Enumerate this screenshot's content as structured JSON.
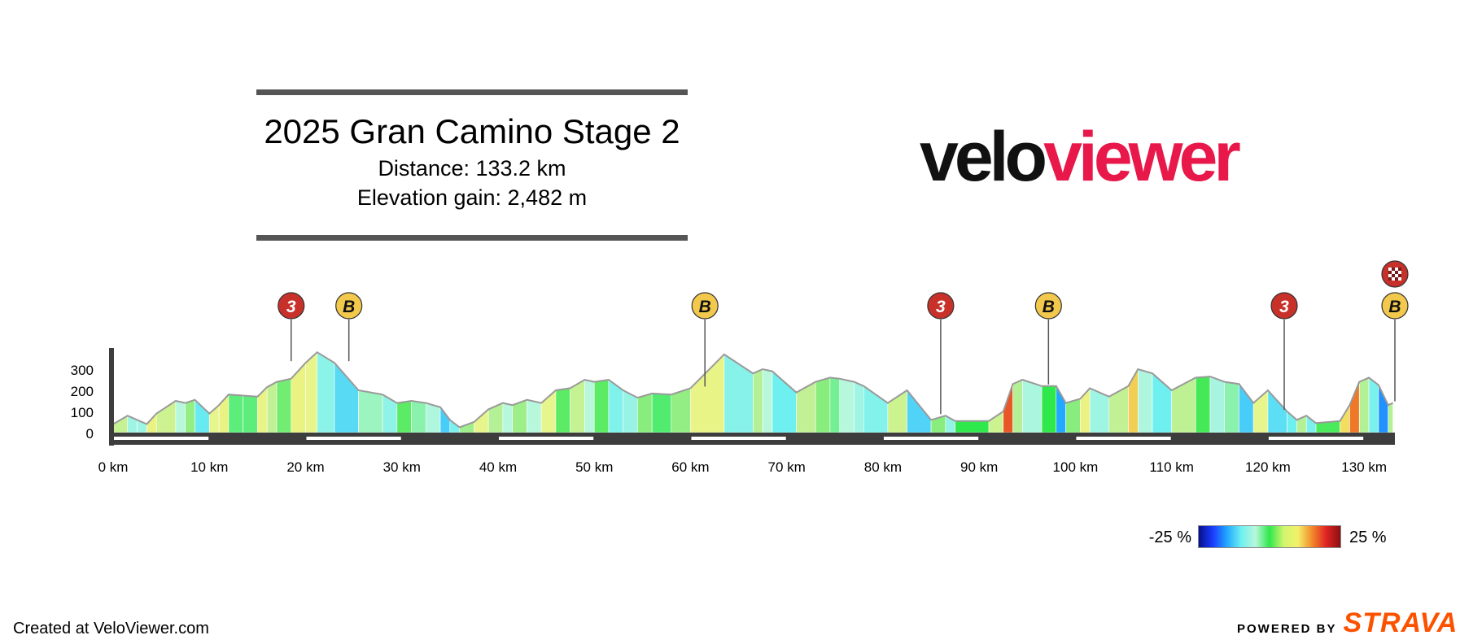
{
  "title": "2025 Gran Camino Stage 2",
  "distance_label": "Distance: 133.2 km",
  "gain_label": "Elevation gain: 2,482 m",
  "logo": {
    "part1": "velo",
    "part2": "viewer"
  },
  "legend": {
    "min_label": "-25 %",
    "max_label": "25 %",
    "colors": [
      "#06108c",
      "#1b3cff",
      "#21a8ff",
      "#6ff0f0",
      "#b7f7dc",
      "#2fe84b",
      "#d2f56e",
      "#f3f06a",
      "#f28a2a",
      "#e02424",
      "#8a0f0f"
    ]
  },
  "credit": "Created at VeloViewer.com",
  "powered": {
    "prefix": "POWERED BY",
    "brand": "STRAVA"
  },
  "chart_data": {
    "type": "area",
    "xlabel": "",
    "ylabel": "",
    "xlim": [
      0,
      133.2
    ],
    "ylim": [
      0,
      400
    ],
    "x_ticks": [
      0,
      10,
      20,
      30,
      40,
      50,
      60,
      70,
      80,
      90,
      100,
      110,
      120,
      130
    ],
    "x_tick_labels": [
      "0 km",
      "10 km",
      "20 km",
      "30 km",
      "40 km",
      "50 km",
      "60 km",
      "70 km",
      "80 km",
      "90 km",
      "100 km",
      "110 km",
      "120 km",
      "130 km"
    ],
    "y_ticks": [
      0,
      100,
      200,
      300
    ],
    "y_tick_labels": [
      "0",
      "100",
      "200",
      "300"
    ],
    "grid": false,
    "color_scale": {
      "min_gradient_pct": -25,
      "max_gradient_pct": 25
    },
    "series": [
      {
        "points": [
          [
            0,
            40
          ],
          [
            1.5,
            80
          ],
          [
            2.5,
            60
          ],
          [
            3.5,
            40
          ],
          [
            4.5,
            90
          ],
          [
            6.5,
            150
          ],
          [
            7.5,
            140
          ],
          [
            8.5,
            155
          ],
          [
            10,
            90
          ],
          [
            11,
            130
          ],
          [
            12,
            180
          ],
          [
            13.5,
            175
          ],
          [
            15,
            170
          ],
          [
            16,
            215
          ],
          [
            17,
            240
          ],
          [
            18.5,
            255
          ],
          [
            20,
            330
          ],
          [
            21.2,
            380
          ],
          [
            23,
            330
          ],
          [
            25.5,
            200
          ],
          [
            28,
            180
          ],
          [
            29.5,
            140
          ],
          [
            31,
            150
          ],
          [
            32.5,
            140
          ],
          [
            34,
            120
          ],
          [
            35,
            60
          ],
          [
            36,
            25
          ],
          [
            37.5,
            50
          ],
          [
            39,
            110
          ],
          [
            40.5,
            140
          ],
          [
            41.5,
            130
          ],
          [
            43,
            155
          ],
          [
            44.5,
            140
          ],
          [
            46,
            200
          ],
          [
            47.5,
            210
          ],
          [
            49,
            250
          ],
          [
            50,
            240
          ],
          [
            51.5,
            250
          ],
          [
            53,
            200
          ],
          [
            54.5,
            165
          ],
          [
            56,
            185
          ],
          [
            58,
            180
          ],
          [
            60,
            210
          ],
          [
            63.5,
            370
          ],
          [
            66.5,
            280
          ],
          [
            67.5,
            300
          ],
          [
            68.5,
            290
          ],
          [
            71,
            190
          ],
          [
            73,
            240
          ],
          [
            74.5,
            260
          ],
          [
            75.5,
            255
          ],
          [
            77,
            240
          ],
          [
            78,
            220
          ],
          [
            80.5,
            140
          ],
          [
            82.5,
            200
          ],
          [
            85,
            60
          ],
          [
            86.5,
            80
          ],
          [
            87.5,
            55
          ],
          [
            91,
            55
          ],
          [
            92.5,
            100
          ],
          [
            93.5,
            230
          ],
          [
            94.5,
            250
          ],
          [
            96.5,
            220
          ],
          [
            98,
            220
          ],
          [
            99,
            140
          ],
          [
            100.5,
            160
          ],
          [
            101.5,
            210
          ],
          [
            103.5,
            170
          ],
          [
            105.5,
            220
          ],
          [
            106.5,
            300
          ],
          [
            108,
            280
          ],
          [
            110,
            200
          ],
          [
            112.5,
            260
          ],
          [
            114,
            265
          ],
          [
            115.5,
            240
          ],
          [
            117,
            230
          ],
          [
            118.5,
            140
          ],
          [
            120,
            200
          ],
          [
            122,
            100
          ],
          [
            123,
            60
          ],
          [
            124,
            80
          ],
          [
            125,
            45
          ],
          [
            127.5,
            55
          ],
          [
            128.5,
            130
          ],
          [
            129.5,
            240
          ],
          [
            130.5,
            260
          ],
          [
            131.5,
            225
          ],
          [
            132.5,
            130
          ],
          [
            133,
            140
          ]
        ]
      }
    ],
    "markers": [
      {
        "km": 18.5,
        "label": "3",
        "type": "climb"
      },
      {
        "km": 24.5,
        "label": "B",
        "type": "bonus"
      },
      {
        "km": 61.5,
        "label": "B",
        "type": "bonus"
      },
      {
        "km": 86.0,
        "label": "3",
        "type": "climb"
      },
      {
        "km": 97.2,
        "label": "B",
        "type": "bonus"
      },
      {
        "km": 121.7,
        "label": "3",
        "type": "climb"
      },
      {
        "km": 133.2,
        "label": "B",
        "type": "bonus"
      }
    ],
    "finish_km": 133.2
  }
}
